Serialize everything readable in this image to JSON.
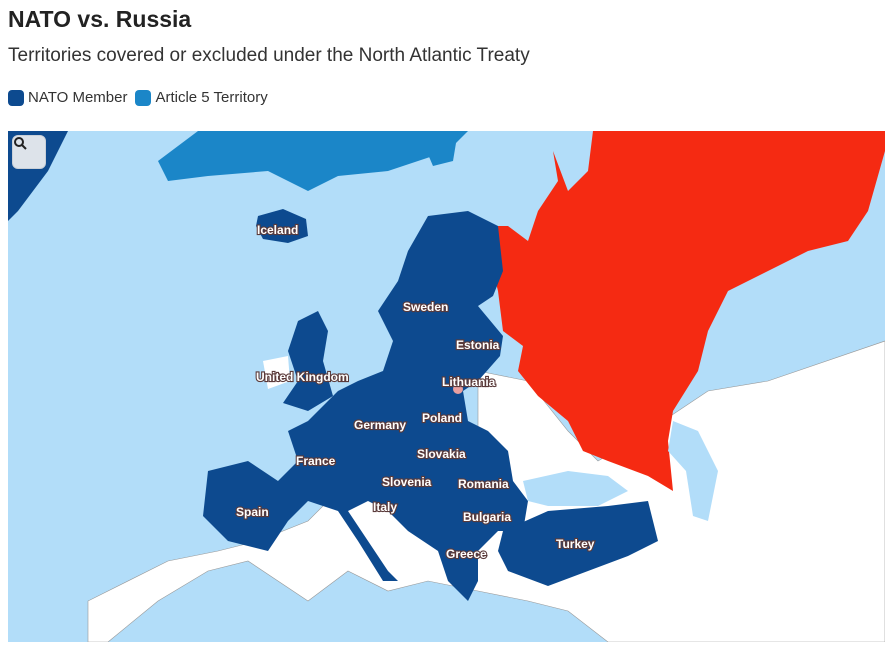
{
  "header": {
    "title": "NATO vs. Russia",
    "subtitle": "Territories covered or excluded under the North Atlantic Treaty"
  },
  "legend": [
    {
      "label": "NATO Member",
      "color": "#0d4a8f"
    },
    {
      "label": "Article 5 Territory",
      "color": "#1b86c8"
    }
  ],
  "map": {
    "zoom_button_icon": "search-icon",
    "colors": {
      "sea": "#b2ddf9",
      "nato": "#0d4a8f",
      "article5": "#1b86c8",
      "russia": "#f52a12",
      "other": "#ffffff"
    },
    "labels": [
      "Iceland",
      "Sweden",
      "Estonia",
      "United Kingdom",
      "Lithuania",
      "Poland",
      "Germany",
      "France",
      "Slovakia",
      "Slovenia",
      "Romania",
      "Italy",
      "Spain",
      "Bulgaria",
      "Greece",
      "Turkey"
    ]
  }
}
